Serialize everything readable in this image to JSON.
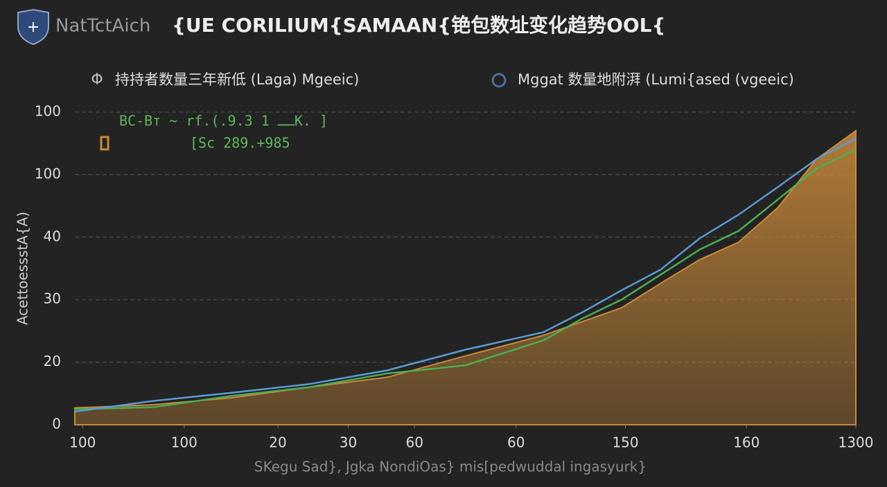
{
  "chart_data": {
    "type": "line",
    "brand": "NatTctAich",
    "title": "{UE CORILIUM{SAMAAN{铯包数址变化趋势OOL{",
    "legend_items": [
      "持持者数量三年新低 (Laga) Mgeeic)",
      "Mggat 数量地附湃 (Lumi{ased (vgeeic)"
    ],
    "annotations": [
      "BC-Bт ~ rf.(.ــ 1 9.3K.     ]",
      "[Sc 289.+985"
    ],
    "ylabel": "AcettoessstA{A)",
    "xlabel": "SKegu Sad}, Jgka   NondiOas}   mis[pedwuddal   ingasyurk}",
    "x": [
      0,
      10,
      20,
      30,
      40,
      50,
      60,
      65,
      70,
      75,
      80,
      85,
      90,
      95,
      100
    ],
    "xlim": [
      0,
      100
    ],
    "xticks": [
      {
        "value": 1,
        "label": "100"
      },
      {
        "value": 14,
        "label": "100"
      },
      {
        "value": 26,
        "label": "20"
      },
      {
        "value": 35,
        "label": "30"
      },
      {
        "value": 43.5,
        "label": "60"
      },
      {
        "value": 56.5,
        "label": "60"
      },
      {
        "value": 70.5,
        "label": "150"
      },
      {
        "value": 86,
        "label": "160"
      },
      {
        "value": 100,
        "label": "1300"
      }
    ],
    "ylim": [
      0,
      50
    ],
    "yticks": [
      0,
      {
        "value": 10,
        "label": "20"
      },
      {
        "value": 20,
        "label": "30"
      },
      {
        "value": 30,
        "label": "40"
      },
      {
        "value": 40,
        "label": "100"
      },
      {
        "value": 50,
        "label": "100"
      }
    ],
    "grid": true,
    "area": {
      "color": "#c98a3a",
      "values": [
        2.7,
        3.2,
        4.3,
        6,
        7.6,
        11,
        14.3,
        16.5,
        18.7,
        22.6,
        26.4,
        29.2,
        34.7,
        42.5,
        47
      ]
    },
    "series": [
      {
        "name": "持持者数量三年新低 (Laga) Mgeeic)",
        "color": "#4caf50",
        "values": [
          2.5,
          2.8,
          4.6,
          6,
          8.2,
          9.5,
          13.5,
          17,
          20,
          24,
          28,
          31,
          36,
          41,
          44
        ]
      },
      {
        "name": "Mggat 数量地附湃 (Lumi{ased (vgeeic)",
        "color": "#5a9bd5",
        "values": [
          2.1,
          3.8,
          5.1,
          6.5,
          8.7,
          12,
          14.8,
          18,
          21.5,
          24.8,
          29.8,
          33.6,
          38,
          42.5,
          45.8
        ]
      }
    ]
  }
}
